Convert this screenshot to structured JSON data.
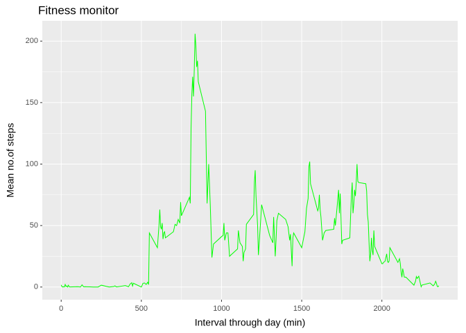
{
  "chart_data": {
    "type": "line",
    "title": "Fitness monitor",
    "x_label": "Interval through day (min)",
    "y_label": "Mean no.of steps",
    "x": [
      0,
      5,
      10,
      15,
      20,
      25,
      30,
      35,
      40,
      45,
      50,
      55,
      100,
      110,
      120,
      130,
      140,
      150,
      200,
      230,
      250,
      300,
      330,
      335,
      345,
      400,
      420,
      430,
      440,
      445,
      450,
      500,
      510,
      520,
      530,
      540,
      545,
      550,
      600,
      610,
      615,
      620,
      625,
      630,
      635,
      640,
      645,
      650,
      700,
      710,
      720,
      730,
      740,
      745,
      750,
      800,
      805,
      810,
      815,
      820,
      825,
      830,
      835,
      840,
      845,
      850,
      855,
      900,
      910,
      920,
      930,
      940,
      950,
      1000,
      1010,
      1015,
      1020,
      1030,
      1040,
      1050,
      1100,
      1105,
      1115,
      1130,
      1135,
      1140,
      1150,
      1155,
      1200,
      1205,
      1210,
      1215,
      1225,
      1230,
      1245,
      1250,
      1300,
      1320,
      1325,
      1335,
      1340,
      1345,
      1355,
      1400,
      1415,
      1425,
      1430,
      1440,
      1445,
      1450,
      1500,
      1520,
      1530,
      1540,
      1545,
      1550,
      1555,
      1600,
      1605,
      1610,
      1615,
      1620,
      1630,
      1640,
      1650,
      1700,
      1705,
      1710,
      1720,
      1730,
      1735,
      1740,
      1745,
      1750,
      1755,
      1800,
      1805,
      1810,
      1815,
      1820,
      1825,
      1830,
      1835,
      1840,
      1845,
      1850,
      1855,
      1900,
      1905,
      1910,
      1915,
      1920,
      1925,
      1930,
      1935,
      1940,
      1945,
      1950,
      1955,
      2000,
      2005,
      2010,
      2020,
      2030,
      2035,
      2040,
      2045,
      2050,
      2100,
      2110,
      2115,
      2120,
      2125,
      2130,
      2140,
      2145,
      2150,
      2200,
      2210,
      2215,
      2220,
      2230,
      2245,
      2250,
      2300,
      2320,
      2330,
      2335,
      2340,
      2345,
      2350,
      2355
    ],
    "series": [
      {
        "name": "steps",
        "color": "#00ff00",
        "values": [
          1.7,
          0.3,
          0.1,
          0.2,
          0.1,
          2.1,
          0.5,
          0.9,
          0,
          1.5,
          0.3,
          0.1,
          0.3,
          0.2,
          0,
          1.8,
          0.2,
          0.3,
          0,
          0,
          1.5,
          0,
          0.5,
          1.0,
          0.1,
          1.2,
          0.3,
          2.5,
          3.5,
          0.8,
          3.1,
          0,
          3.0,
          3.3,
          2.1,
          3.9,
          2.0,
          44,
          32,
          50,
          63,
          49,
          47,
          52,
          39,
          44,
          45,
          40,
          45,
          51,
          50,
          55,
          52,
          69,
          58,
          73,
          68,
          129,
          157,
          171,
          155,
          177,
          206,
          196,
          179,
          184,
          167,
          143,
          68,
          100,
          66,
          24,
          35,
          41,
          42,
          52,
          38,
          44,
          44,
          25,
          31,
          46,
          36,
          33,
          21,
          28,
          31,
          51,
          59,
          85,
          95,
          74,
          50,
          26,
          56,
          67,
          42,
          36,
          57,
          25,
          38,
          54,
          60,
          55,
          49,
          38,
          43,
          17,
          40,
          44,
          32,
          45,
          64,
          72,
          98,
          102,
          84,
          62,
          64,
          75,
          63,
          57,
          38,
          44,
          46,
          47,
          56,
          50,
          64,
          79,
          60,
          76,
          57,
          35,
          38,
          40,
          58,
          74,
          85,
          60,
          68,
          79,
          74,
          85,
          100,
          86,
          85,
          84,
          78,
          59,
          53,
          36,
          21,
          27,
          40,
          30,
          26,
          46,
          33,
          19,
          19,
          20,
          21,
          27,
          21,
          20,
          21,
          32,
          20,
          23,
          19,
          12,
          8,
          15,
          8,
          8,
          8,
          1.5,
          4.8,
          8.5,
          7,
          8.8,
          0.2,
          1.6,
          3.3,
          1,
          2.6,
          4.7,
          3.3,
          0.6,
          0.2,
          1.1
        ]
      }
    ],
    "xlim": [
      -117.75,
      2472.75
    ],
    "xticks": [
      0,
      500,
      1000,
      1500,
      2000
    ],
    "ylim": [
      -10.3,
      216.5
    ],
    "yticks": [
      0,
      50,
      100,
      150,
      200
    ],
    "grid": true,
    "minor_grid": true,
    "panel_color": "#ebebeb"
  }
}
